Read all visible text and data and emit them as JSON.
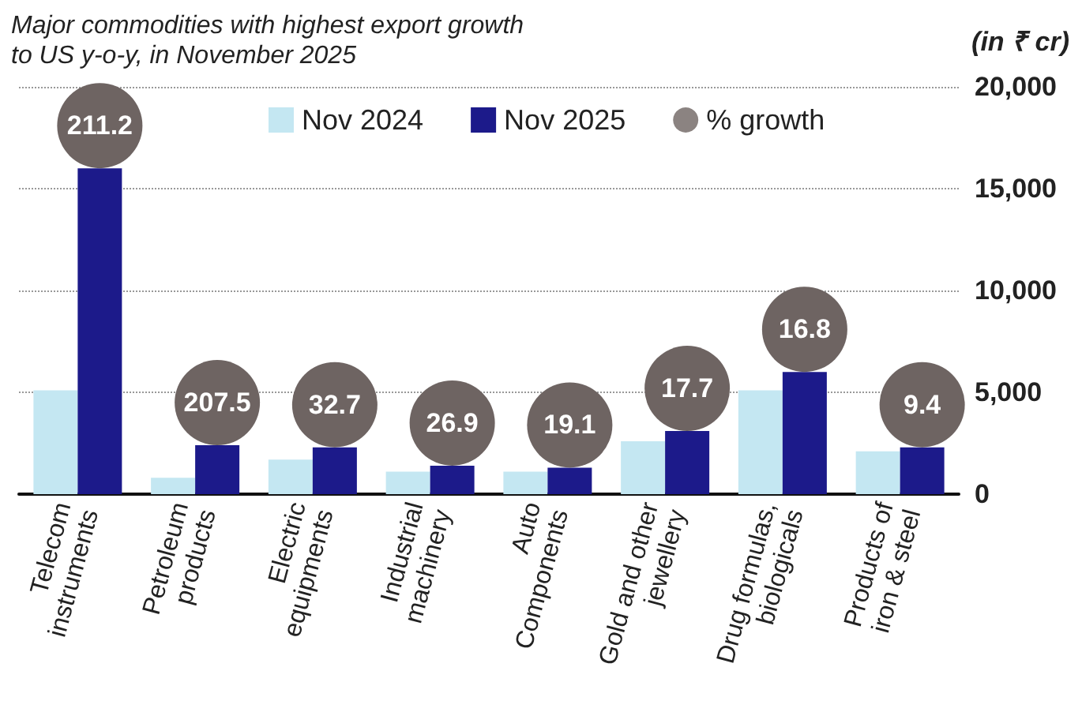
{
  "chart_data": {
    "type": "bar",
    "title": "Major commodities with highest export growth\nto US y-o-y, in November 2025",
    "ylabel": "(in ₹ cr)",
    "categories": [
      "Telecom\ninstruments",
      "Petroleum\nproducts",
      "Electric\nequipments",
      "Industrial\nmachinery",
      "Auto\nComponents",
      "Gold and other\njewellery",
      "Drug formulas,\nbiologicals",
      "Products of\niron & steel"
    ],
    "series": [
      {
        "name": "Nov 2024",
        "color": "#c4e7f2",
        "values": [
          5100,
          800,
          1700,
          1100,
          1100,
          2600,
          5100,
          2100
        ]
      },
      {
        "name": "Nov 2025",
        "color": "#1c1a8a",
        "values": [
          16000,
          2400,
          2300,
          1400,
          1300,
          3100,
          6000,
          2300
        ]
      },
      {
        "name": "% growth",
        "type": "scatter",
        "color": "#6e6462",
        "values": [
          null,
          null,
          null,
          null,
          null,
          null,
          null,
          null
        ]
      }
    ],
    "annotations": [
      {
        "text": "211.2",
        "x": "Telecom\ninstruments",
        "y": 16000
      },
      {
        "text": "207.5",
        "x": "Petroleum\nproducts",
        "y": 2400
      },
      {
        "text": "32.7",
        "x": "Electric\nequipments",
        "y": 2300
      },
      {
        "text": "26.9",
        "x": "Industrial\nmachinery",
        "y": 1400
      },
      {
        "text": "19.1",
        "x": "Auto\nComponents",
        "y": 1300
      },
      {
        "text": "17.7",
        "x": "Gold and other\njewellery",
        "y": 3100
      },
      {
        "text": "16.8",
        "x": "Drug formulas,\nbiologicals",
        "y": 6000
      },
      {
        "text": "9.4",
        "x": "Products of\niron & steel",
        "y": 2300
      }
    ],
    "ylim": [
      0,
      20000
    ],
    "yticks": [
      0,
      {
        "value": 5000,
        "label": "5,000"
      },
      {
        "value": 10000,
        "label": "10,000"
      },
      {
        "value": 15000,
        "label": "15,000"
      },
      {
        "value": 20000,
        "label": "20,000"
      }
    ],
    "grid": "y",
    "legend": "top"
  }
}
